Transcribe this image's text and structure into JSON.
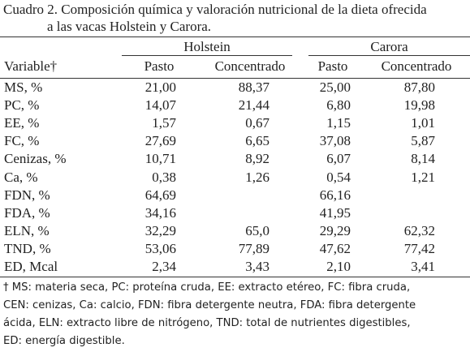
{
  "caption": {
    "line1": "Cuadro 2. Composición química y valoración nutricional de la dieta ofrecida",
    "line2": "a las vacas Holstein y Carora."
  },
  "table": {
    "group_headers": [
      "Holstein",
      "Carora"
    ],
    "variable_header": "Variable†",
    "column_headers": [
      "Pasto",
      "Concentrado",
      "Pasto",
      "Concentrado"
    ],
    "rows": [
      {
        "label": "MS, %",
        "values": [
          "21,00",
          "88,37",
          "25,00",
          "87,80"
        ]
      },
      {
        "label": "PC, %",
        "values": [
          "14,07",
          "21,44",
          "6,80",
          "19,98"
        ]
      },
      {
        "label": "EE, %",
        "values": [
          "1,57",
          "0,67",
          "1,15",
          "1,01"
        ]
      },
      {
        "label": "FC, %",
        "values": [
          "27,69",
          "6,65",
          "37,08",
          "5,87"
        ]
      },
      {
        "label": "Cenizas, %",
        "values": [
          "10,71",
          "8,92",
          "6,07",
          "8,14"
        ]
      },
      {
        "label": "Ca, %",
        "values": [
          "0,38",
          "1,26",
          "0,54",
          "1,21"
        ]
      },
      {
        "label": "FDN, %",
        "values": [
          "64,69",
          "",
          "66,16",
          ""
        ]
      },
      {
        "label": "FDA, %",
        "values": [
          "34,16",
          "",
          "41,95",
          ""
        ]
      },
      {
        "label": "ELN, %",
        "values": [
          "32,29",
          "65,0",
          "29,29",
          "62,32"
        ]
      },
      {
        "label": "TND, %",
        "values": [
          "53,06",
          "77,89",
          "47,62",
          "77,42"
        ]
      },
      {
        "label": "ED, Mcal",
        "values": [
          "2,34",
          "3,43",
          "2,10",
          "3,41"
        ]
      }
    ]
  },
  "footnote": [
    "† MS: materia seca, PC: proteína cruda, EE: extracto etéreo, FC: fibra cruda,",
    "CEN: cenizas, Ca: calcio, FDN: fibra detergente neutra, FDA: fibra detergente",
    "ácida, ELN: extracto libre de nitrógeno, TND: total de nutrientes digestibles,",
    "ED: energía digestible."
  ]
}
